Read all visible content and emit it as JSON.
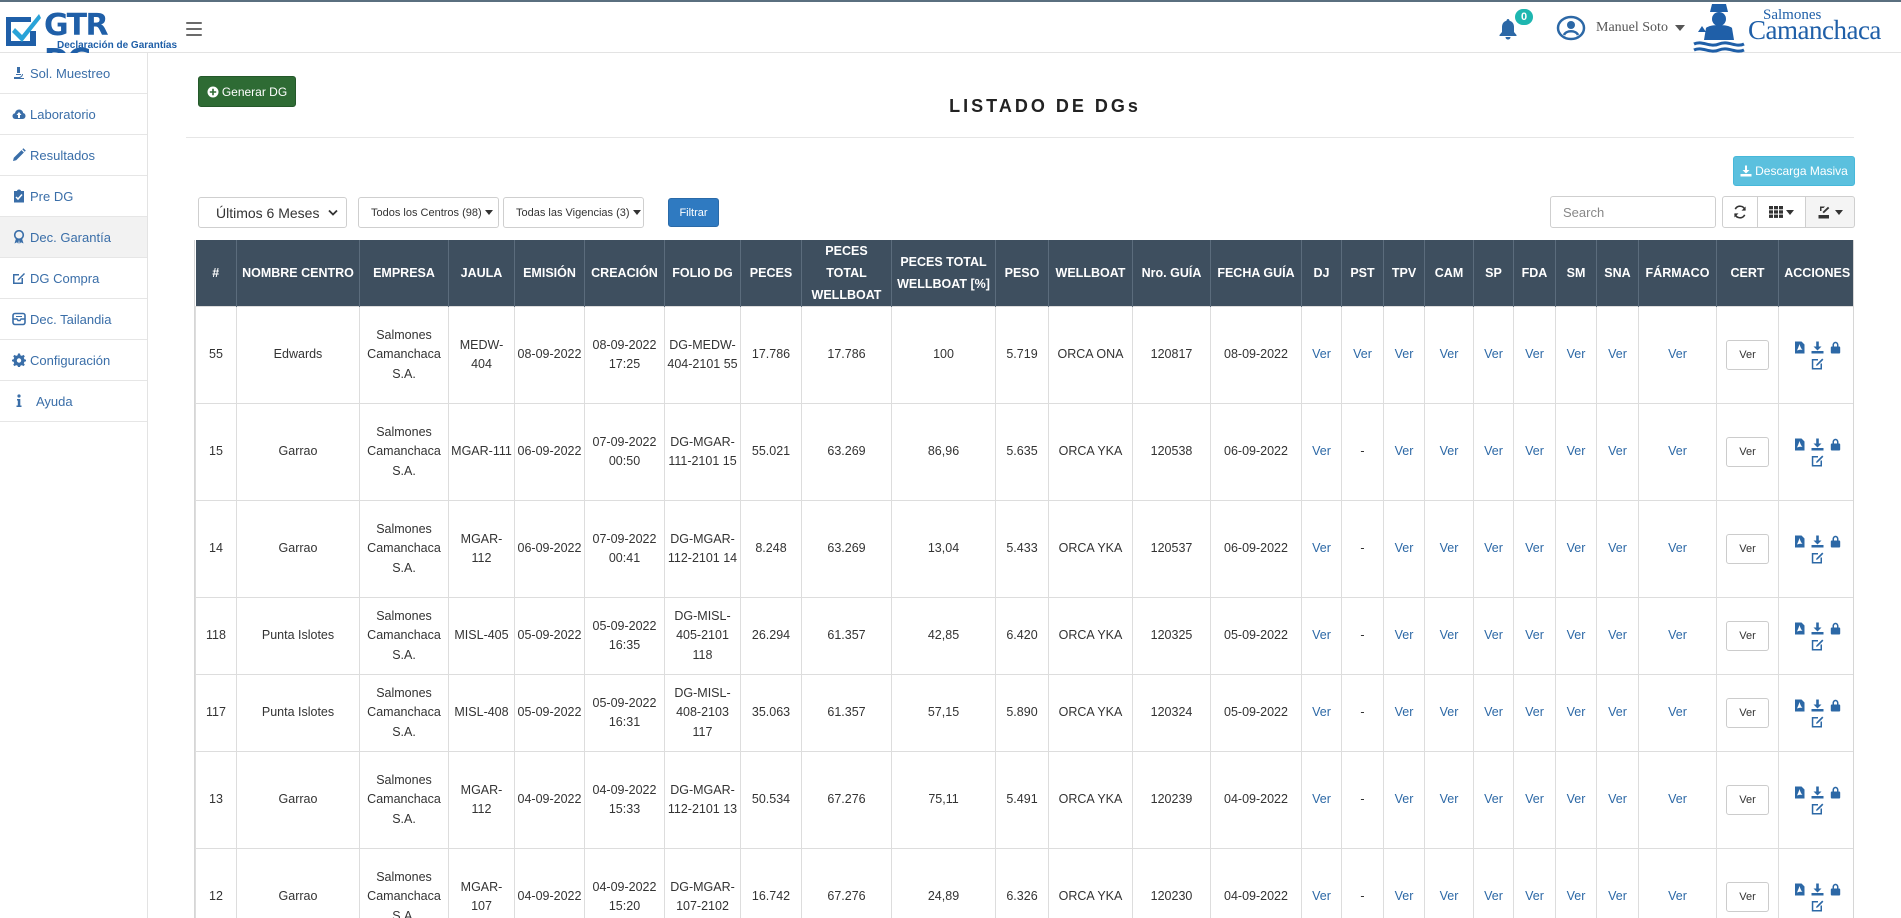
{
  "header": {
    "logo_title": "GTR DGs",
    "logo_subtitle": "Declaración de Garantías",
    "notifications_count": "0",
    "user_name": "Manuel Soto",
    "brand_top": "Salmones",
    "brand_main": "Camanchaca"
  },
  "sidebar": {
    "items": [
      {
        "label": "Sol. Muestreo",
        "icon": "microscope-icon"
      },
      {
        "label": "Laboratorio",
        "icon": "cloud-upload-icon"
      },
      {
        "label": "Resultados",
        "icon": "pencil-icon"
      },
      {
        "label": "Pre DG",
        "icon": "clipboard-icon"
      },
      {
        "label": "Dec. Garantía",
        "icon": "award-icon"
      },
      {
        "label": "DG Compra",
        "icon": "external-edit-icon"
      },
      {
        "label": "Dec. Tailandia",
        "icon": "archive-icon"
      },
      {
        "label": "Configuración",
        "icon": "gear-icon"
      },
      {
        "label": "Ayuda",
        "icon": "info-icon"
      }
    ]
  },
  "main": {
    "generar_label": "Generar DG",
    "title": "LISTADO DE DGs",
    "descarga_label": "Descarga Masiva",
    "filter_periodo": "Últimos 6 Meses",
    "filter_centros": "Todos los Centros (98)",
    "filter_vigencias": "Todas las Vigencias (3)",
    "filtrar_label": "Filtrar",
    "search_placeholder": "Search"
  },
  "table": {
    "columns": [
      "#",
      "NOMBRE CENTRO",
      "EMPRESA",
      "JAULA",
      "EMISIÓN",
      "CREACIÓN",
      "FOLIO DG",
      "PECES",
      "PECES TOTAL WELLBOAT",
      "PECES TOTAL WELLBOAT [%]",
      "PESO",
      "WELLBOAT",
      "Nro. GUÍA",
      "FECHA GUÍA",
      "DJ",
      "PST",
      "TPV",
      "CAM",
      "SP",
      "FDA",
      "SM",
      "SNA",
      "FÁRMACO",
      "CERT",
      "ACCIONES"
    ],
    "ver_label": "Ver",
    "rows": [
      {
        "num": "55",
        "centro": "Edwards",
        "empresa": "Salmones Camanchaca S.A.",
        "jaula": "MEDW-404",
        "emision": "08-09-2022",
        "creacion": "08-09-2022 17:25",
        "folio": "DG-MEDW-404-2101 55",
        "peces": "17.786",
        "total": "17.786",
        "pct": "100",
        "peso": "5.719",
        "wellboat": "ORCA ONA",
        "guia": "120817",
        "fecha_guia": "08-09-2022",
        "dj": "Ver",
        "pst": "Ver",
        "tpv": "Ver",
        "cam": "Ver",
        "sp": "Ver",
        "fda": "Ver",
        "sm": "Ver",
        "sna": "Ver",
        "farmaco": "Ver"
      },
      {
        "num": "15",
        "centro": "Garrao",
        "empresa": "Salmones Camanchaca S.A.",
        "jaula": "MGAR-111",
        "emision": "06-09-2022",
        "creacion": "07-09-2022 00:50",
        "folio": "DG-MGAR-111-2101 15",
        "peces": "55.021",
        "total": "63.269",
        "pct": "86,96",
        "peso": "5.635",
        "wellboat": "ORCA YKA",
        "guia": "120538",
        "fecha_guia": "06-09-2022",
        "dj": "Ver",
        "pst": "-",
        "tpv": "Ver",
        "cam": "Ver",
        "sp": "Ver",
        "fda": "Ver",
        "sm": "Ver",
        "sna": "Ver",
        "farmaco": "Ver"
      },
      {
        "num": "14",
        "centro": "Garrao",
        "empresa": "Salmones Camanchaca S.A.",
        "jaula": "MGAR-112",
        "emision": "06-09-2022",
        "creacion": "07-09-2022 00:41",
        "folio": "DG-MGAR-112-2101 14",
        "peces": "8.248",
        "total": "63.269",
        "pct": "13,04",
        "peso": "5.433",
        "wellboat": "ORCA YKA",
        "guia": "120537",
        "fecha_guia": "06-09-2022",
        "dj": "Ver",
        "pst": "-",
        "tpv": "Ver",
        "cam": "Ver",
        "sp": "Ver",
        "fda": "Ver",
        "sm": "Ver",
        "sna": "Ver",
        "farmaco": "Ver"
      },
      {
        "num": "118",
        "centro": "Punta Islotes",
        "empresa": "Salmones Camanchaca S.A.",
        "jaula": "MISL-405",
        "emision": "05-09-2022",
        "creacion": "05-09-2022 16:35",
        "folio": "DG-MISL-405-2101 118",
        "peces": "26.294",
        "total": "61.357",
        "pct": "42,85",
        "peso": "6.420",
        "wellboat": "ORCA YKA",
        "guia": "120325",
        "fecha_guia": "05-09-2022",
        "dj": "Ver",
        "pst": "-",
        "tpv": "Ver",
        "cam": "Ver",
        "sp": "Ver",
        "fda": "Ver",
        "sm": "Ver",
        "sna": "Ver",
        "farmaco": "Ver"
      },
      {
        "num": "117",
        "centro": "Punta Islotes",
        "empresa": "Salmones Camanchaca S.A.",
        "jaula": "MISL-408",
        "emision": "05-09-2022",
        "creacion": "05-09-2022 16:31",
        "folio": "DG-MISL-408-2103 117",
        "peces": "35.063",
        "total": "61.357",
        "pct": "57,15",
        "peso": "5.890",
        "wellboat": "ORCA YKA",
        "guia": "120324",
        "fecha_guia": "05-09-2022",
        "dj": "Ver",
        "pst": "-",
        "tpv": "Ver",
        "cam": "Ver",
        "sp": "Ver",
        "fda": "Ver",
        "sm": "Ver",
        "sna": "Ver",
        "farmaco": "Ver"
      },
      {
        "num": "13",
        "centro": "Garrao",
        "empresa": "Salmones Camanchaca S.A.",
        "jaula": "MGAR-112",
        "emision": "04-09-2022",
        "creacion": "04-09-2022 15:33",
        "folio": "DG-MGAR-112-2101 13",
        "peces": "50.534",
        "total": "67.276",
        "pct": "75,11",
        "peso": "5.491",
        "wellboat": "ORCA YKA",
        "guia": "120239",
        "fecha_guia": "04-09-2022",
        "dj": "Ver",
        "pst": "-",
        "tpv": "Ver",
        "cam": "Ver",
        "sp": "Ver",
        "fda": "Ver",
        "sm": "Ver",
        "sna": "Ver",
        "farmaco": "Ver"
      },
      {
        "num": "12",
        "centro": "Garrao",
        "empresa": "Salmones Camanchaca S.A.",
        "jaula": "MGAR-107",
        "emision": "04-09-2022",
        "creacion": "04-09-2022 15:20",
        "folio": "DG-MGAR-107-2102",
        "peces": "16.742",
        "total": "67.276",
        "pct": "24,89",
        "peso": "6.326",
        "wellboat": "ORCA YKA",
        "guia": "120230",
        "fecha_guia": "04-09-2022",
        "dj": "Ver",
        "pst": "-",
        "tpv": "Ver",
        "cam": "Ver",
        "sp": "Ver",
        "fda": "Ver",
        "sm": "Ver",
        "sna": "Ver",
        "farmaco": "Ver"
      }
    ]
  }
}
